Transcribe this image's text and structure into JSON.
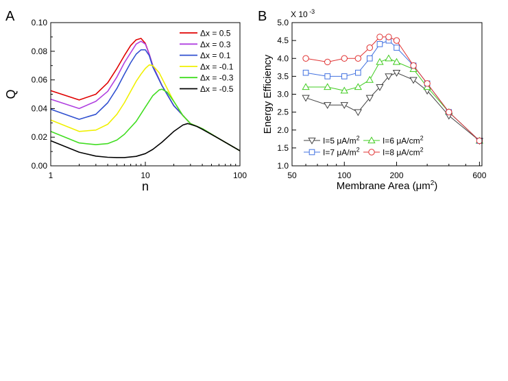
{
  "chart_data": [
    {
      "panel_label": "A",
      "type": "line",
      "xscale": "log",
      "xlabel": "n",
      "ylabel": "Q",
      "xlim": [
        1,
        100
      ],
      "ylim": [
        0,
        0.1
      ],
      "xticks": [
        1,
        10,
        100
      ],
      "xtick_labels": [
        "1",
        "10",
        "100"
      ],
      "yticks": [
        0.0,
        0.02,
        0.04,
        0.06,
        0.08,
        0.1
      ],
      "ytick_labels": [
        "0.00",
        "0.02",
        "0.04",
        "0.06",
        "0.08",
        "0.10"
      ],
      "legend_position": "top-right",
      "series": [
        {
          "name": "Δx =  0.5",
          "color": "#e00000",
          "x": [
            1,
            2,
            3,
            4,
            5,
            6,
            7,
            8,
            9,
            10,
            11,
            12,
            15,
            20,
            30,
            40,
            60,
            100
          ],
          "y": [
            0.0525,
            0.046,
            0.05,
            0.058,
            0.068,
            0.077,
            0.084,
            0.088,
            0.089,
            0.0855,
            0.078,
            0.07,
            0.056,
            0.042,
            0.0295,
            0.026,
            0.019,
            0.0105
          ]
        },
        {
          "name": "Δx =  0.3",
          "color": "#b040e0",
          "x": [
            1,
            2,
            3,
            4,
            5,
            6,
            7,
            8,
            9,
            10,
            11,
            12,
            15,
            20,
            30,
            40,
            60,
            100
          ],
          "y": [
            0.0465,
            0.04,
            0.045,
            0.052,
            0.062,
            0.072,
            0.079,
            0.085,
            0.087,
            0.085,
            0.078,
            0.07,
            0.056,
            0.042,
            0.0295,
            0.026,
            0.019,
            0.0105
          ]
        },
        {
          "name": "Δx =  0.1",
          "color": "#3050d0",
          "x": [
            1,
            2,
            3,
            4,
            5,
            6,
            7,
            8,
            9,
            10,
            11,
            12,
            15,
            20,
            30,
            40,
            60,
            100
          ],
          "y": [
            0.0395,
            0.0325,
            0.036,
            0.044,
            0.054,
            0.064,
            0.072,
            0.078,
            0.081,
            0.081,
            0.077,
            0.069,
            0.056,
            0.042,
            0.0295,
            0.026,
            0.019,
            0.0105
          ]
        },
        {
          "name": "Δx = -0.1",
          "color": "#f0f000",
          "x": [
            1,
            2,
            3,
            4,
            5,
            6,
            7,
            8,
            9,
            10,
            11,
            12,
            14,
            17,
            20,
            25,
            30,
            40,
            60,
            100
          ],
          "y": [
            0.032,
            0.024,
            0.025,
            0.029,
            0.036,
            0.044,
            0.052,
            0.059,
            0.064,
            0.068,
            0.0705,
            0.07,
            0.065,
            0.054,
            0.045,
            0.035,
            0.0295,
            0.026,
            0.019,
            0.0105
          ]
        },
        {
          "name": "Δx = -0.3",
          "color": "#40dd20",
          "x": [
            1,
            2,
            3,
            4,
            5,
            6,
            8,
            10,
            12,
            14,
            15,
            17,
            20,
            25,
            30,
            40,
            60,
            100
          ],
          "y": [
            0.024,
            0.016,
            0.0148,
            0.0155,
            0.018,
            0.022,
            0.031,
            0.041,
            0.049,
            0.053,
            0.0535,
            0.0515,
            0.045,
            0.035,
            0.0295,
            0.026,
            0.019,
            0.0105
          ]
        },
        {
          "name": "Δx = -0.5",
          "color": "#000000",
          "x": [
            1,
            2,
            3,
            4,
            5,
            6,
            8,
            10,
            12,
            15,
            20,
            25,
            28,
            30,
            35,
            40,
            60,
            100
          ],
          "y": [
            0.0175,
            0.0095,
            0.0068,
            0.006,
            0.0058,
            0.0058,
            0.0066,
            0.0085,
            0.0115,
            0.0165,
            0.024,
            0.0285,
            0.0295,
            0.029,
            0.0275,
            0.0255,
            0.019,
            0.0105
          ]
        }
      ]
    },
    {
      "panel_label": "B",
      "type": "line",
      "xscale": "log",
      "xlabel": "Membrane Area (μm²)",
      "xlabel_main": "Membrane Area (",
      "xlabel_unit": "μm",
      "xlabel_sup": "2",
      "xlabel_close": ")",
      "ylabel": "Energy Efficiency",
      "y_multiplier_text": "X 10",
      "y_multiplier_exp": "-3",
      "xlim": [
        50,
        620
      ],
      "ylim": [
        1.0,
        5.0
      ],
      "xticks": [
        50,
        100,
        200,
        600
      ],
      "xtick_labels": [
        "50",
        "100",
        "200",
        "600"
      ],
      "yticks": [
        1.0,
        1.5,
        2.0,
        2.5,
        3.0,
        3.5,
        4.0,
        4.5,
        5.0
      ],
      "ytick_labels": [
        "1.0",
        "1.5",
        "2.0",
        "2.5",
        "3.0",
        "3.5",
        "4.0",
        "4.5",
        "5.0"
      ],
      "legend_position": "bottom-left",
      "series": [
        {
          "name": "I=5 μA/m2",
          "label": "I=5 ",
          "unit": "μA/m",
          "sup": "2",
          "color": "#404040",
          "marker": "triangle-down",
          "x": [
            60,
            80,
            100,
            120,
            140,
            160,
            180,
            200,
            250,
            300,
            400,
            600
          ],
          "y": [
            2.9,
            2.7,
            2.7,
            2.5,
            2.9,
            3.2,
            3.5,
            3.6,
            3.4,
            3.1,
            2.4,
            1.7
          ]
        },
        {
          "name": "I=6 μA/cm2",
          "label": "I=6 ",
          "unit": "μA/cm",
          "sup": "2",
          "color": "#40cc20",
          "marker": "triangle-up",
          "x": [
            60,
            80,
            100,
            120,
            140,
            160,
            180,
            200,
            250,
            300,
            400,
            600
          ],
          "y": [
            3.2,
            3.2,
            3.1,
            3.2,
            3.4,
            3.9,
            4.0,
            3.9,
            3.7,
            3.2,
            2.5,
            1.7
          ]
        },
        {
          "name": "I=7 μA/m2",
          "label": "I=7 ",
          "unit": "μA/m",
          "sup": "2",
          "color": "#4070e0",
          "marker": "square",
          "x": [
            60,
            80,
            100,
            120,
            140,
            160,
            180,
            200,
            250,
            300,
            400,
            600
          ],
          "y": [
            3.6,
            3.5,
            3.5,
            3.6,
            4.0,
            4.4,
            4.5,
            4.3,
            3.8,
            3.3,
            2.5,
            1.7
          ]
        },
        {
          "name": "I=8 μA/cm2",
          "label": "I=8 ",
          "unit": "μA/cm",
          "sup": "2",
          "color": "#e03030",
          "marker": "circle",
          "x": [
            60,
            80,
            100,
            120,
            140,
            160,
            180,
            200,
            250,
            300,
            400,
            600
          ],
          "y": [
            4.0,
            3.9,
            4.0,
            4.0,
            4.3,
            4.6,
            4.6,
            4.5,
            3.8,
            3.3,
            2.5,
            1.7
          ]
        }
      ]
    }
  ]
}
